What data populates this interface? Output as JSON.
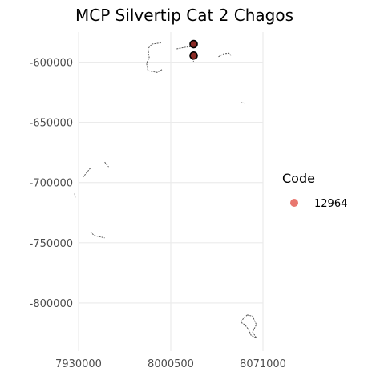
{
  "chart_data": {
    "type": "scatter",
    "title": "MCP Silvertip Cat 2 Chagos",
    "xlabel": "",
    "ylabel": "",
    "xlim": [
      7930000,
      8071000
    ],
    "ylim": [
      -840000,
      -575000
    ],
    "x_ticks": [
      7930000,
      8000500,
      8071000
    ],
    "x_tick_labels": [
      "7930000",
      "8000500",
      "8071000"
    ],
    "y_ticks": [
      -600000,
      -650000,
      -700000,
      -750000,
      -800000
    ],
    "y_tick_labels": [
      "-600000",
      "-650000",
      "-700000",
      "-750000",
      "-800000"
    ],
    "grid": true,
    "legend": {
      "title": "Code",
      "placement": "right",
      "entries": [
        "12964"
      ]
    },
    "series": [
      {
        "name": "12964",
        "color": "#e8776f",
        "points": [
          {
            "x": 8018000,
            "y": -585000
          },
          {
            "x": 8018000,
            "y": -594500
          }
        ]
      }
    ],
    "coastlines": [
      [
        [
          7993000,
          -584000
        ],
        [
          7986000,
          -585000
        ],
        [
          7983000,
          -589000
        ],
        [
          7984000,
          -596000
        ],
        [
          7982000,
          -601000
        ],
        [
          7983000,
          -607000
        ],
        [
          7990000,
          -608500
        ],
        [
          7994000,
          -606000
        ]
      ],
      [
        [
          8005000,
          -589000
        ],
        [
          8012000,
          -587500
        ],
        [
          8018000,
          -587000
        ]
      ],
      [
        [
          8017000,
          -597000
        ],
        [
          8018000,
          -599500
        ]
      ],
      [
        [
          8037000,
          -595500
        ],
        [
          8041000,
          -593000
        ],
        [
          8045000,
          -592500
        ],
        [
          8047000,
          -595000
        ]
      ],
      [
        [
          8054000,
          -633500
        ],
        [
          8057000,
          -634000
        ]
      ],
      [
        [
          7939000,
          -688000
        ],
        [
          7936000,
          -692000
        ],
        [
          7933000,
          -696000
        ]
      ],
      [
        [
          7950000,
          -683000
        ],
        [
          7953000,
          -687000
        ]
      ],
      [
        [
          7927000,
          -709000
        ],
        [
          7927500,
          -713000
        ]
      ],
      [
        [
          7939000,
          -741000
        ],
        [
          7942000,
          -744000
        ],
        [
          7946000,
          -745000
        ],
        [
          7950000,
          -746000
        ]
      ],
      [
        [
          8059000,
          -810000
        ],
        [
          8056000,
          -813000
        ],
        [
          8054000,
          -816000
        ],
        [
          8057000,
          -818000
        ],
        [
          8060000,
          -822000
        ],
        [
          8062000,
          -827000
        ],
        [
          8066000,
          -829000
        ],
        [
          8063000,
          -824000
        ],
        [
          8066000,
          -818000
        ],
        [
          8063000,
          -811000
        ],
        [
          8059000,
          -810000
        ]
      ]
    ]
  }
}
